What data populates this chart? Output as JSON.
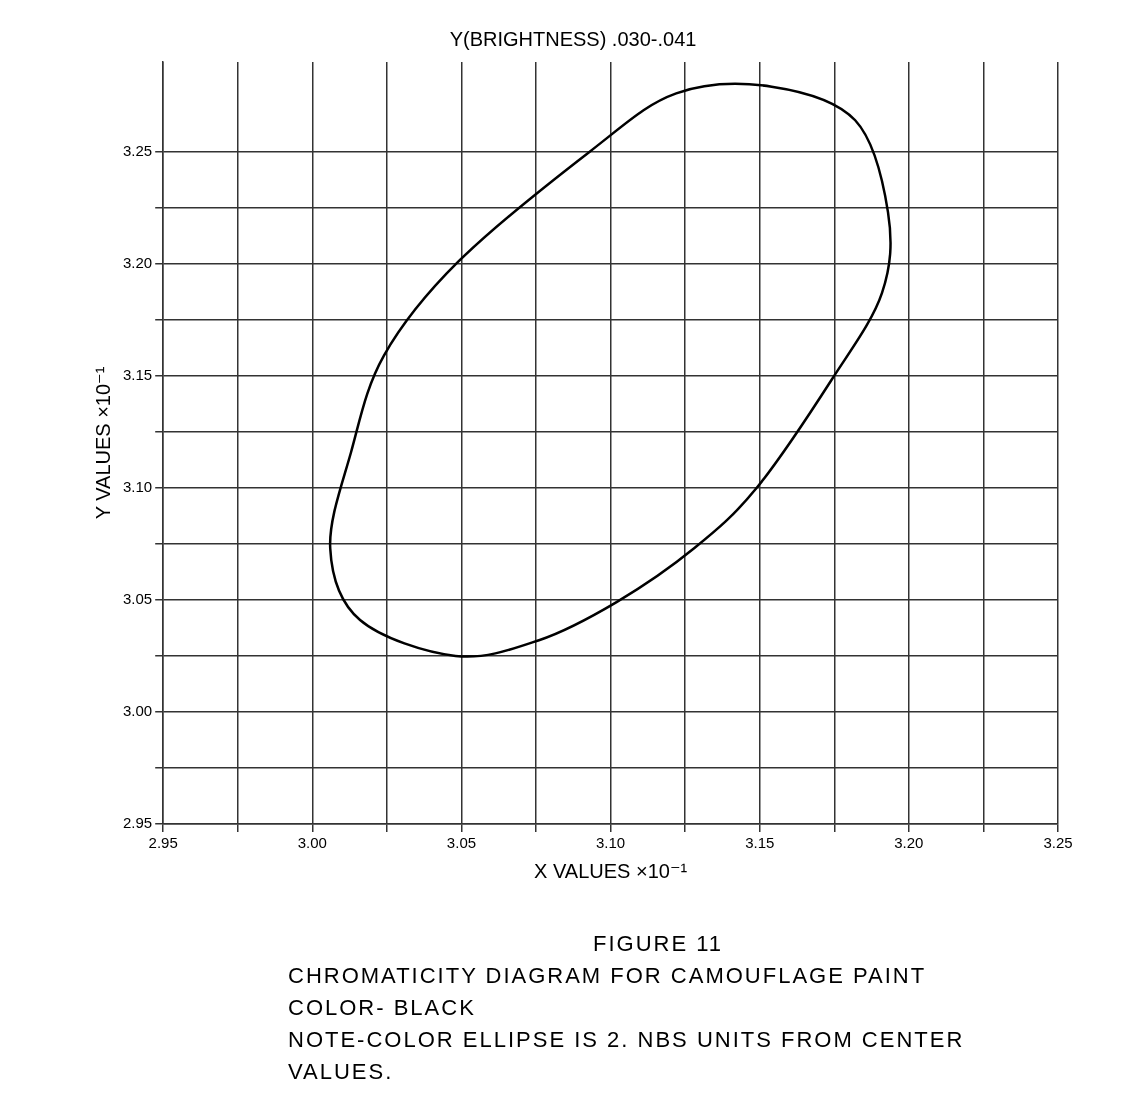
{
  "chart_data": {
    "type": "line",
    "title": "Y(BRIGHTNESS) .030-.041",
    "xlabel": "X VALUES ×10⁻¹",
    "ylabel": "Y VALUES ×10⁻¹",
    "xlim": [
      2.95,
      3.25
    ],
    "ylim": [
      2.95,
      3.29
    ],
    "xticks": [
      2.95,
      {
        "value": 2.975,
        "label": null
      },
      {
        "value": 3.0,
        "label": "3.00"
      },
      {
        "value": 3.025,
        "label": null
      },
      3.05,
      {
        "value": 3.075,
        "label": null
      },
      {
        "value": 3.1,
        "label": "3.10"
      },
      {
        "value": 3.125,
        "label": null
      },
      3.15,
      {
        "value": 3.175,
        "label": null
      },
      {
        "value": 3.2,
        "label": "3.20"
      },
      {
        "value": 3.225,
        "label": null
      },
      3.25
    ],
    "yticks": [
      2.95,
      {
        "value": 2.975,
        "label": null
      },
      {
        "value": 3.0,
        "label": "3.00"
      },
      {
        "value": 3.025,
        "label": null
      },
      3.05,
      {
        "value": 3.075,
        "label": null
      },
      {
        "value": 3.1,
        "label": "3.10"
      },
      {
        "value": 3.125,
        "label": null
      },
      3.15,
      {
        "value": 3.175,
        "label": null
      },
      {
        "value": 3.2,
        "label": "3.20"
      },
      {
        "value": 3.225,
        "label": null
      },
      3.25
    ],
    "grid": true,
    "annotations": [
      "FIGURE 11",
      "CHROMATICITY DIAGRAM FOR CAMOUFLAGE PAINT",
      "COLOR- BLACK",
      "NOTE-COLOR ELLIPSE IS 2. NBS UNITS FROM CENTER VALUES."
    ]
  }
}
